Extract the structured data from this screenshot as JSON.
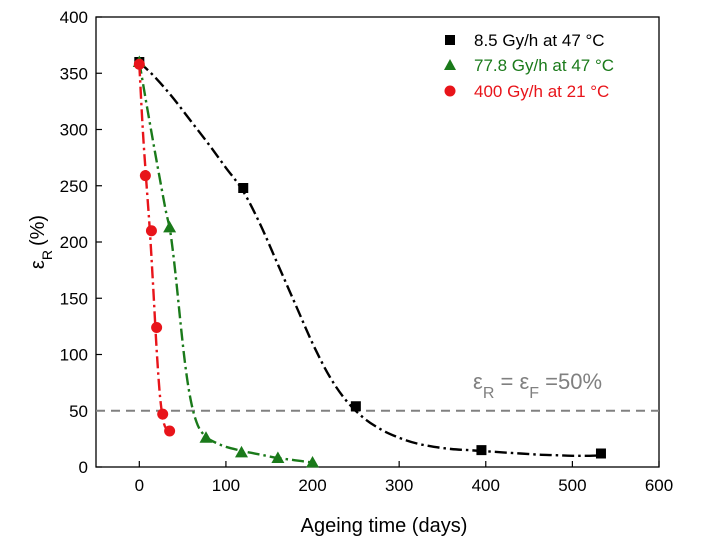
{
  "chart_data": {
    "type": "scatter",
    "xlabel": "Ageing time (days)",
    "ylabel_main": "ε",
    "ylabel_sub": "R",
    "ylabel_unit": "(%)",
    "xlim": [
      -50,
      600
    ],
    "ylim": [
      0,
      400
    ],
    "xticks": [
      0,
      100,
      200,
      300,
      400,
      500,
      600
    ],
    "yticks": [
      0,
      50,
      100,
      150,
      200,
      250,
      300,
      350,
      400
    ],
    "grid": false,
    "legend_position": "top-right",
    "series": [
      {
        "name": "8.5 Gy/h at 47 °C",
        "marker": "square",
        "color": "#000000",
        "x": [
          0,
          120,
          250,
          395,
          533
        ],
        "y": [
          360,
          248,
          54,
          15,
          12
        ],
        "fit_x": [
          0,
          20,
          40,
          60,
          80,
          100,
          120,
          140,
          160,
          180,
          200,
          220,
          240,
          260,
          280,
          300,
          320,
          340,
          360,
          380,
          400,
          420,
          440,
          460,
          480,
          500,
          520,
          535
        ],
        "fit_y": [
          360,
          345,
          327,
          307,
          287,
          266,
          245,
          215,
          180,
          145,
          110,
          80,
          58,
          43,
          33,
          26,
          21,
          18,
          16,
          15,
          14,
          13,
          12,
          11,
          10.5,
          10,
          10,
          10.5
        ]
      },
      {
        "name": "77.8 Gy/h at 47 °C",
        "marker": "triangle",
        "color": "#1a7a1a",
        "x": [
          0,
          35,
          77,
          118,
          160,
          200
        ],
        "y": [
          360,
          213,
          26,
          13,
          8,
          4
        ],
        "fit_x": [
          0,
          10,
          20,
          30,
          36,
          42,
          48,
          54,
          60,
          66,
          72,
          80,
          90,
          100,
          120,
          140,
          160,
          180,
          200
        ],
        "fit_y": [
          360,
          315,
          272,
          230,
          208,
          170,
          125,
          85,
          57,
          40,
          31,
          25,
          21,
          18,
          14,
          11,
          8,
          6,
          4
        ]
      },
      {
        "name": "400 Gy/h at 21 °C",
        "marker": "circle",
        "color": "#e8141a",
        "x": [
          0,
          7,
          14,
          20,
          27,
          35
        ],
        "y": [
          358,
          259,
          210,
          124,
          47,
          32
        ],
        "fit_x": [
          0,
          4,
          8,
          12,
          16,
          20,
          24,
          28,
          32,
          36
        ],
        "fit_y": [
          358,
          300,
          255,
          212,
          160,
          105,
          62,
          40,
          33,
          30
        ]
      }
    ],
    "reference_line": {
      "y": 50,
      "color": "#808080",
      "label_parts": [
        "ε",
        "R",
        " = ε",
        "F",
        " =50%"
      ]
    }
  }
}
